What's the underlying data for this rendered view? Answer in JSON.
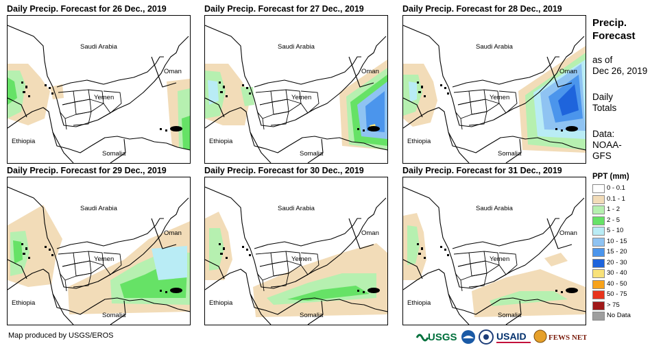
{
  "panels": [
    {
      "title": "Daily Precip. Forecast for 26 Dec., 2019"
    },
    {
      "title": "Daily Precip. Forecast for 27 Dec., 2019"
    },
    {
      "title": "Daily Precip. Forecast for 28 Dec., 2019"
    },
    {
      "title": "Daily Precip. Forecast for 29 Dec., 2019"
    },
    {
      "title": "Daily Precip. Forecast for 30 Dec., 2019"
    },
    {
      "title": "Daily Precip. Forecast for 31 Dec., 2019"
    }
  ],
  "map_labels": {
    "saudi": "Saudi Arabia",
    "oman": "Oman",
    "yemen": "Yemen",
    "ethiopia": "Ethiopia",
    "somalia": "Somalia"
  },
  "sidebar": {
    "title": "Precip. Forecast",
    "asof_label": "as of",
    "asof_date": "Dec 26, 2019",
    "daily_line1": "Daily",
    "daily_line2": "Totals",
    "data_line1": "Data:",
    "data_line2": "NOAA-",
    "data_line3": "GFS"
  },
  "legend": {
    "title": "PPT (mm)",
    "items": [
      {
        "label": "0 - 0.1",
        "color": "#ffffff"
      },
      {
        "label": "0.1 - 1",
        "color": "#f2dcb8"
      },
      {
        "label": "1 - 2",
        "color": "#b6f0b0"
      },
      {
        "label": "2 - 5",
        "color": "#66e266"
      },
      {
        "label": "5 - 10",
        "color": "#b9ecf5"
      },
      {
        "label": "10 - 15",
        "color": "#8fc3f2"
      },
      {
        "label": "15 - 20",
        "color": "#4b95ec"
      },
      {
        "label": "20 - 30",
        "color": "#1e64dc"
      },
      {
        "label": "30 - 40",
        "color": "#f8e27a"
      },
      {
        "label": "40 - 50",
        "color": "#f7a21b"
      },
      {
        "label": "50 - 75",
        "color": "#e8341c"
      },
      {
        "label": "> 75",
        "color": "#a01818"
      },
      {
        "label": "No Data",
        "color": "#9e9e9e"
      }
    ]
  },
  "footer": {
    "credit": "Map produced by USGS/EROS"
  },
  "logos": {
    "usgs": "USGS",
    "usaid": "USAID",
    "fews": "FEWS NET"
  }
}
